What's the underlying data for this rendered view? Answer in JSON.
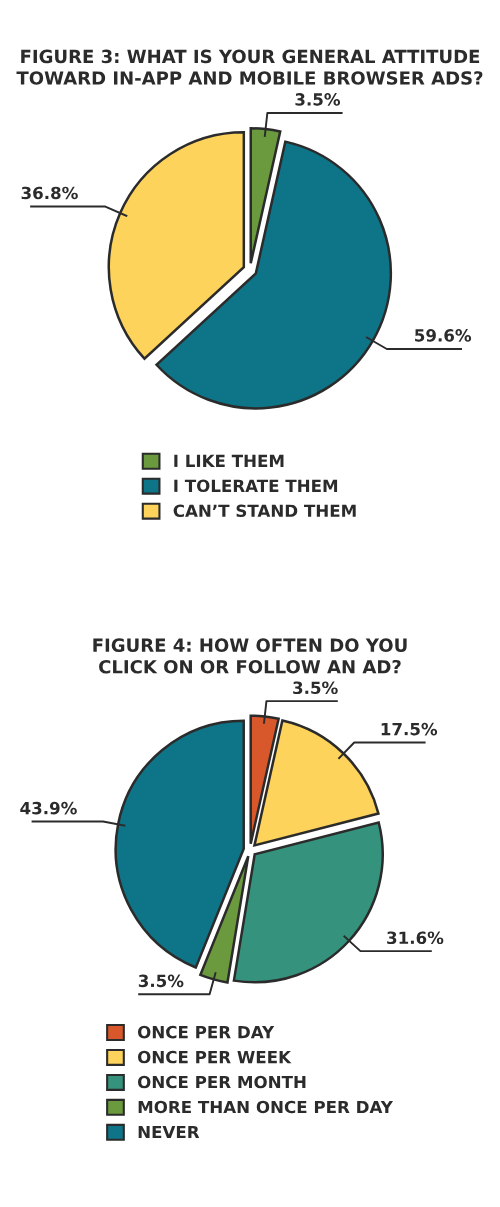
{
  "chart_data": [
    {
      "type": "pie",
      "title": "FIGURE 3: WHAT IS YOUR GENERAL ATTITUDE\nTOWARD IN-APP AND MOBILE BROWSER ADS?",
      "categories": [
        "I LIKE THEM",
        "I TOLERATE THEM",
        "CAN’T STAND THEM"
      ],
      "values": [
        3.5,
        59.6,
        36.8
      ],
      "colors": [
        "#6b9a3e",
        "#0e7487",
        "#fdd35c"
      ],
      "value_labels": [
        "3.5%",
        "59.6%",
        "36.8%"
      ],
      "legend": "bottom"
    },
    {
      "type": "pie",
      "title": "FIGURE 4: HOW OFTEN DO YOU\nCLICK ON OR FOLLOW AN AD?",
      "categories": [
        "ONCE PER DAY",
        "ONCE PER WEEK",
        "ONCE PER MONTH",
        "MORE THAN ONCE PER DAY",
        "NEVER"
      ],
      "values": [
        3.5,
        17.5,
        31.6,
        3.5,
        43.9
      ],
      "colors": [
        "#d9582b",
        "#fdd35c",
        "#35927c",
        "#6b9a3e",
        "#0e7487"
      ],
      "value_labels": [
        "3.5%",
        "17.5%",
        "31.6%",
        "3.5%",
        "43.9%"
      ],
      "legend": "bottom"
    }
  ]
}
